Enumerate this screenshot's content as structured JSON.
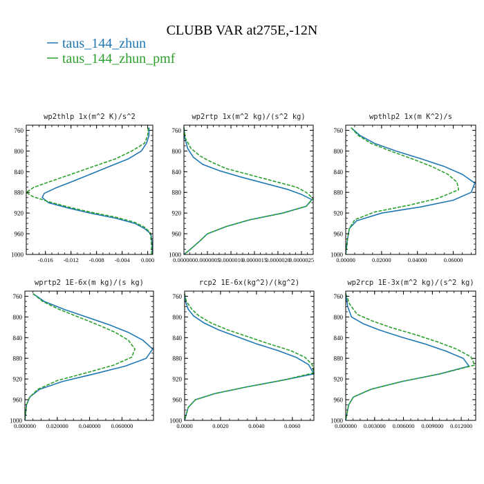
{
  "figure": {
    "title": "CLUBB VAR at275E,-12N"
  },
  "legend": [
    {
      "name": "taus_144_zhun",
      "color": "#1f77b4"
    },
    {
      "name": "taus_144_zhun_pmf",
      "color": "#2ca02c"
    }
  ],
  "chart_data": [
    {
      "type": "line",
      "title": "wp2thlp  1x(m^2 K)/s^2",
      "ylim": [
        1000,
        750
      ],
      "yticks": [
        760,
        800,
        840,
        880,
        920,
        960,
        1000
      ],
      "xlim": [
        -0.019,
        0.0008
      ],
      "xticks": [
        -0.016,
        -0.012,
        -0.008,
        -0.004,
        0.0
      ],
      "xtick_labels": [
        "-0.016",
        "-0.012",
        "-0.008",
        "-0.004",
        "0.000"
      ],
      "series": [
        {
          "name": "taus_144_zhun",
          "color": "#1f77b4",
          "dashed": false,
          "x": [
            0.0002,
            0.0002,
            -0.0002,
            -0.001,
            -0.003,
            -0.006,
            -0.009,
            -0.012,
            -0.0145,
            -0.0162,
            -0.0165,
            -0.0155,
            -0.0125,
            -0.009,
            -0.005,
            -0.002,
            -0.0005,
            0.0005,
            0.0007,
            0.0007
          ],
          "y": [
            755,
            770,
            785,
            800,
            815,
            830,
            845,
            860,
            872,
            882,
            890,
            900,
            910,
            920,
            930,
            940,
            950,
            960,
            980,
            1000
          ]
        },
        {
          "name": "taus_144_zhun_pmf",
          "color": "#2ca02c",
          "dashed": true,
          "x": [
            0.0001,
            0.0,
            -0.0005,
            -0.0025,
            -0.005,
            -0.0085,
            -0.012,
            -0.0155,
            -0.0178,
            -0.019,
            -0.018,
            -0.0155,
            -0.0125,
            -0.009,
            -0.005,
            -0.002,
            -0.0004,
            0.0004,
            0.0006,
            0.0006
          ],
          "y": [
            755,
            770,
            785,
            800,
            815,
            830,
            845,
            860,
            870,
            880,
            888,
            898,
            908,
            918,
            928,
            938,
            948,
            958,
            980,
            1000
          ]
        }
      ]
    },
    {
      "type": "line",
      "title": "wp2rtp  1x(m^2 kg)/(s^2 kg)",
      "ylim": [
        1000,
        750
      ],
      "yticks": [
        760,
        800,
        840,
        880,
        920,
        960,
        1000
      ],
      "xlim": [
        0.0,
        2.75e-06
      ],
      "xticks": [
        0.0,
        5e-07,
        1e-06,
        1.5e-06,
        2e-06,
        2.5e-06
      ],
      "xtick_labels": [
        "0.000000",
        "0.0000005",
        "0.0000010",
        "0.0000015",
        "0.0000020",
        "0.0000025"
      ],
      "series": [
        {
          "name": "taus_144_zhun",
          "color": "#1f77b4",
          "dashed": false,
          "x": [
            0.0,
            2e-08,
            8e-08,
            2e-07,
            4e-07,
            7.5e-07,
            1.2e-06,
            1.7e-06,
            2.2e-06,
            2.5e-06,
            2.72e-06,
            2.6e-06,
            2.1e-06,
            1.4e-06,
            9e-07,
            5e-07,
            3.5e-07,
            2e-07,
            1e-07,
            0.0
          ],
          "y": [
            755,
            775,
            795,
            812,
            826,
            838,
            850,
            862,
            874,
            884,
            894,
            907,
            920,
            933,
            946,
            960,
            973,
            985,
            993,
            1000
          ]
        },
        {
          "name": "taus_144_zhun_pmf",
          "color": "#2ca02c",
          "dashed": true,
          "x": [
            0.0,
            3e-08,
            1.5e-07,
            3.5e-07,
            6e-07,
            9e-07,
            1.4e-06,
            1.9e-06,
            2.4e-06,
            2.6e-06,
            2.75e-06,
            2.6e-06,
            2.1e-06,
            1.4e-06,
            9e-07,
            5e-07,
            3.5e-07,
            2e-07,
            1e-07,
            0.0
          ],
          "y": [
            755,
            775,
            795,
            810,
            822,
            834,
            846,
            858,
            870,
            880,
            892,
            907,
            920,
            933,
            946,
            960,
            973,
            985,
            993,
            1000
          ]
        }
      ]
    },
    {
      "type": "line",
      "title": "wpthlp2  1x(m K^2)/s",
      "ylim": [
        1000,
        750
      ],
      "yticks": [
        760,
        800,
        840,
        880,
        920,
        960,
        1000
      ],
      "xlim": [
        0.0,
        0.0725
      ],
      "xticks": [
        0.0,
        0.02,
        0.04,
        0.06
      ],
      "xtick_labels": [
        "0.00000",
        "0.02000",
        "0.04000",
        "0.06000"
      ],
      "series": [
        {
          "name": "taus_144_zhun",
          "color": "#1f77b4",
          "dashed": false,
          "x": [
            0.003,
            0.008,
            0.016,
            0.028,
            0.042,
            0.055,
            0.065,
            0.072,
            0.07,
            0.06,
            0.042,
            0.02,
            0.006,
            0.002,
            0.001,
            0.0
          ],
          "y": [
            755,
            770,
            785,
            800,
            815,
            830,
            845,
            862,
            880,
            895,
            908,
            920,
            935,
            950,
            970,
            1000
          ]
        },
        {
          "name": "taus_144_zhun_pmf",
          "color": "#2ca02c",
          "dashed": true,
          "x": [
            0.003,
            0.007,
            0.014,
            0.025,
            0.037,
            0.048,
            0.057,
            0.062,
            0.063,
            0.051,
            0.035,
            0.016,
            0.005,
            0.002,
            0.001,
            0.0
          ],
          "y": [
            755,
            770,
            785,
            800,
            815,
            830,
            845,
            860,
            875,
            892,
            905,
            918,
            933,
            950,
            970,
            1000
          ]
        }
      ]
    },
    {
      "type": "line",
      "title": "wprtp2  1E-6x(m kg)/(s kg)",
      "ylim": [
        1000,
        750
      ],
      "yticks": [
        760,
        800,
        840,
        880,
        920,
        960,
        1000
      ],
      "xlim": [
        0.0,
        0.0795
      ],
      "xticks": [
        0.0,
        0.02,
        0.04,
        0.06
      ],
      "xtick_labels": [
        "0.000000",
        "0.020000",
        "0.040000",
        "0.060000"
      ],
      "series": [
        {
          "name": "taus_144_zhun",
          "color": "#1f77b4",
          "dashed": false,
          "x": [
            0.005,
            0.012,
            0.024,
            0.038,
            0.052,
            0.064,
            0.073,
            0.079,
            0.075,
            0.062,
            0.043,
            0.023,
            0.009,
            0.003,
            0.001,
            0.0
          ],
          "y": [
            755,
            770,
            785,
            800,
            815,
            830,
            845,
            862,
            880,
            895,
            910,
            925,
            940,
            955,
            970,
            1000
          ]
        },
        {
          "name": "taus_144_zhun_pmf",
          "color": "#2ca02c",
          "dashed": true,
          "x": [
            0.005,
            0.011,
            0.021,
            0.033,
            0.045,
            0.056,
            0.064,
            0.068,
            0.066,
            0.055,
            0.038,
            0.02,
            0.008,
            0.003,
            0.001,
            0.0
          ],
          "y": [
            755,
            770,
            785,
            800,
            815,
            830,
            845,
            862,
            878,
            893,
            908,
            923,
            940,
            955,
            970,
            1000
          ]
        }
      ]
    },
    {
      "type": "line",
      "title": "rcp2  1E-6x(kg^2)/(kg^2)",
      "ylim": [
        1000,
        750
      ],
      "yticks": [
        760,
        800,
        840,
        880,
        920,
        960,
        1000
      ],
      "xlim": [
        0.0,
        0.0072
      ],
      "xticks": [
        0.0,
        0.002,
        0.004,
        0.006
      ],
      "xtick_labels": [
        "0.0000",
        "0.0020",
        "0.0040",
        "0.0060"
      ],
      "series": [
        {
          "name": "taus_144_zhun",
          "color": "#1f77b4",
          "dashed": false,
          "x": [
            0.0,
            5e-05,
            0.0002,
            0.0005,
            0.0011,
            0.0019,
            0.0029,
            0.004,
            0.0052,
            0.0062,
            0.0069,
            0.0072,
            0.0055,
            0.0035,
            0.0017,
            0.0006,
            0.0002,
            0.0
          ],
          "y": [
            755,
            770,
            785,
            798,
            812,
            825,
            838,
            852,
            865,
            878,
            892,
            910,
            922,
            935,
            948,
            960,
            975,
            1000
          ]
        },
        {
          "name": "taus_144_zhun_pmf",
          "color": "#2ca02c",
          "dashed": true,
          "x": [
            0.0,
            0.0001,
            0.0004,
            0.0008,
            0.0015,
            0.0024,
            0.0035,
            0.0047,
            0.0059,
            0.0067,
            0.0071,
            0.0072,
            0.0055,
            0.0035,
            0.0017,
            0.0006,
            0.0002,
            0.0
          ],
          "y": [
            755,
            770,
            785,
            798,
            812,
            825,
            838,
            852,
            865,
            878,
            892,
            908,
            922,
            935,
            948,
            960,
            975,
            1000
          ]
        }
      ]
    },
    {
      "type": "line",
      "title": "wp2rcp  1E-3x(m^2 kg)/(s^2 kg)",
      "ylim": [
        1000,
        750
      ],
      "yticks": [
        760,
        800,
        840,
        880,
        920,
        960,
        1000
      ],
      "xlim": [
        0.0,
        0.0135
      ],
      "xticks": [
        0.0,
        0.003,
        0.006,
        0.009,
        0.012
      ],
      "xtick_labels": [
        "0.000000",
        "0.003000",
        "0.006000",
        "0.009000",
        "0.012000"
      ],
      "series": [
        {
          "name": "taus_144_zhun",
          "color": "#1f77b4",
          "dashed": false,
          "x": [
            0.0,
            0.0002,
            0.0006,
            0.0018,
            0.0036,
            0.0058,
            0.0082,
            0.0104,
            0.0122,
            0.0128,
            0.0098,
            0.0058,
            0.0026,
            0.0008,
            0.0003,
            0.0
          ],
          "y": [
            755,
            780,
            800,
            813,
            826,
            839,
            852,
            866,
            880,
            895,
            910,
            925,
            940,
            955,
            970,
            1000
          ]
        },
        {
          "name": "taus_144_zhun_pmf",
          "color": "#2ca02c",
          "dashed": true,
          "x": [
            0.0,
            0.0004,
            0.0012,
            0.0028,
            0.0048,
            0.0072,
            0.0095,
            0.0115,
            0.013,
            0.0134,
            0.0098,
            0.0058,
            0.0026,
            0.0008,
            0.0003,
            0.0
          ],
          "y": [
            755,
            775,
            795,
            808,
            821,
            834,
            848,
            862,
            877,
            893,
            910,
            925,
            940,
            955,
            970,
            1000
          ]
        }
      ]
    }
  ]
}
